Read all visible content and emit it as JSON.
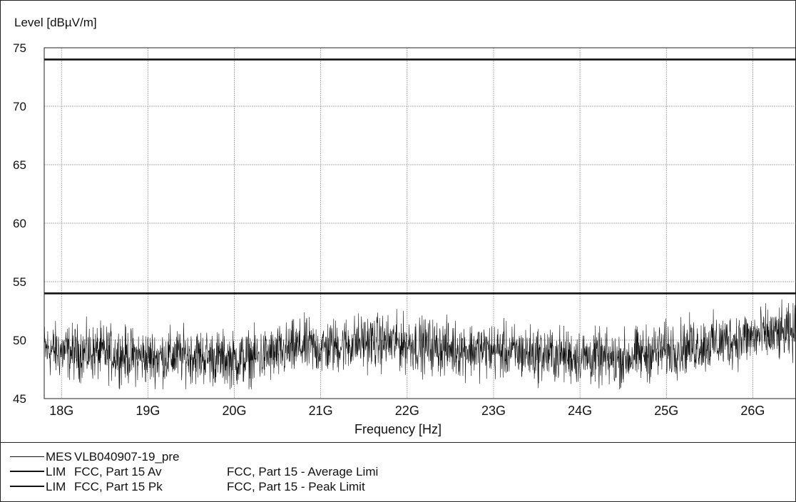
{
  "chart_data": {
    "type": "line",
    "title": "",
    "ylabel": "Level [dBµV/m]",
    "xlabel": "Frequency [Hz]",
    "xlim_ghz": [
      17.8,
      26.5
    ],
    "ylim": [
      45,
      75
    ],
    "x_ticks": [
      {
        "value": 18,
        "label": "18G"
      },
      {
        "value": 19,
        "label": "19G"
      },
      {
        "value": 20,
        "label": "20G"
      },
      {
        "value": 21,
        "label": "21G"
      },
      {
        "value": 22,
        "label": "22G"
      },
      {
        "value": 23,
        "label": "23G"
      },
      {
        "value": 24,
        "label": "24G"
      },
      {
        "value": 25,
        "label": "25G"
      },
      {
        "value": 26,
        "label": "26G"
      }
    ],
    "y_ticks": [
      {
        "value": 45,
        "label": "45"
      },
      {
        "value": 50,
        "label": "50"
      },
      {
        "value": 55,
        "label": "55"
      },
      {
        "value": 60,
        "label": "60"
      },
      {
        "value": 65,
        "label": "65"
      },
      {
        "value": 70,
        "label": "70"
      },
      {
        "value": 75,
        "label": "75"
      }
    ],
    "grid": true,
    "series": [
      {
        "name": "MES VLB040907-19_pre",
        "style": "thin",
        "x": [
          17.8,
          18.0,
          18.5,
          19.0,
          19.5,
          20.0,
          20.5,
          20.8,
          21.0,
          21.5,
          22.0,
          22.5,
          23.0,
          23.5,
          24.0,
          24.4,
          24.8,
          25.2,
          25.6,
          26.0,
          26.5
        ],
        "y": [
          49.2,
          49.0,
          48.9,
          48.5,
          48.7,
          48.3,
          48.8,
          49.5,
          49.3,
          49.9,
          49.7,
          49.3,
          49.1,
          48.8,
          48.6,
          48.3,
          48.9,
          49.4,
          49.8,
          50.3,
          50.6
        ]
      },
      {
        "name": "LIM FCC, Part 15 Av",
        "style": "thick",
        "x": [
          17.8,
          26.5
        ],
        "y": [
          54,
          54
        ]
      },
      {
        "name": "LIM FCC, Part 15 Pk",
        "style": "thick",
        "x": [
          17.8,
          26.5
        ],
        "y": [
          74,
          74
        ]
      }
    ]
  },
  "legend": [
    {
      "kind": "MES",
      "name": "VLB040907-19_pre",
      "desc": ""
    },
    {
      "kind": "LIM",
      "name": "FCC, Part 15 Av",
      "desc": "FCC, Part 15 - Average Limi"
    },
    {
      "kind": "LIM",
      "name": "FCC, Part 15 Pk",
      "desc": "FCC, Part 15 - Peak Limit"
    }
  ]
}
